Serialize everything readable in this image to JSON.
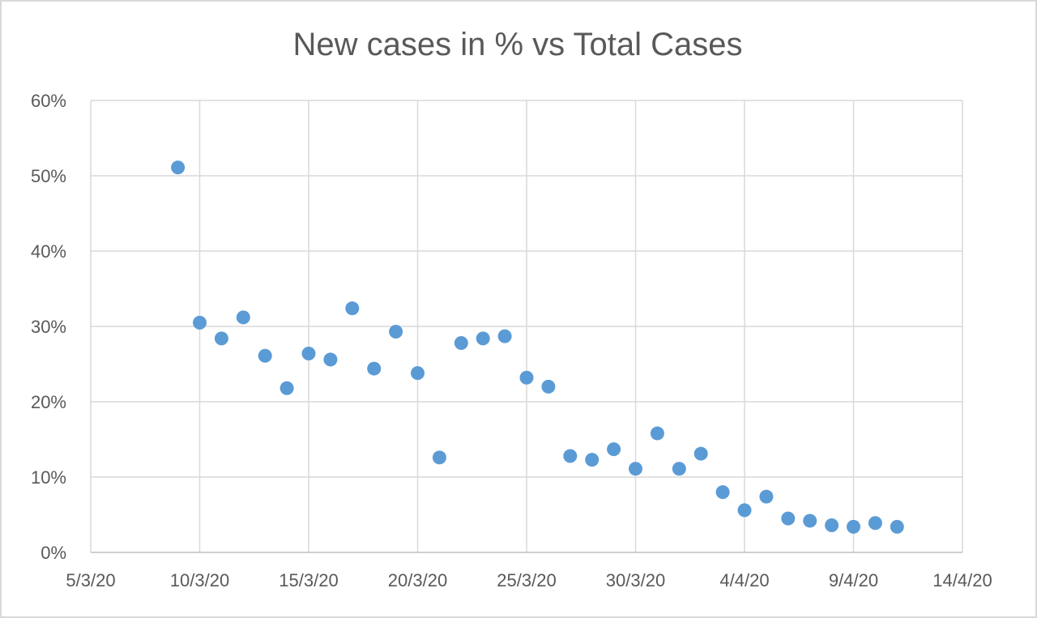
{
  "chart_data": {
    "type": "scatter",
    "title": "New cases in % vs Total Cases",
    "xlabel": "",
    "ylabel": "",
    "x_tick_labels": [
      "5/3/20",
      "10/3/20",
      "15/3/20",
      "20/3/20",
      "25/3/20",
      "30/3/20",
      "4/4/20",
      "9/4/20",
      "14/4/20"
    ],
    "y_tick_labels": [
      "0%",
      "10%",
      "20%",
      "30%",
      "40%",
      "50%",
      "60%"
    ],
    "xlim": [
      "5/3/20",
      "14/4/20"
    ],
    "ylim": [
      0,
      60
    ],
    "grid": true,
    "legend": "none",
    "marker_color": "#5b9bd5",
    "points": [
      {
        "x": "9/3/20",
        "y": 51.1
      },
      {
        "x": "10/3/20",
        "y": 30.5
      },
      {
        "x": "11/3/20",
        "y": 28.4
      },
      {
        "x": "12/3/20",
        "y": 31.2
      },
      {
        "x": "13/3/20",
        "y": 26.1
      },
      {
        "x": "14/3/20",
        "y": 21.8
      },
      {
        "x": "15/3/20",
        "y": 26.4
      },
      {
        "x": "16/3/20",
        "y": 25.6
      },
      {
        "x": "17/3/20",
        "y": 32.4
      },
      {
        "x": "18/3/20",
        "y": 24.4
      },
      {
        "x": "19/3/20",
        "y": 29.3
      },
      {
        "x": "20/3/20",
        "y": 23.8
      },
      {
        "x": "21/3/20",
        "y": 12.6
      },
      {
        "x": "22/3/20",
        "y": 27.8
      },
      {
        "x": "23/3/20",
        "y": 28.4
      },
      {
        "x": "24/3/20",
        "y": 28.7
      },
      {
        "x": "25/3/20",
        "y": 23.2
      },
      {
        "x": "26/3/20",
        "y": 22.0
      },
      {
        "x": "27/3/20",
        "y": 12.8
      },
      {
        "x": "28/3/20",
        "y": 12.3
      },
      {
        "x": "29/3/20",
        "y": 13.7
      },
      {
        "x": "30/3/20",
        "y": 11.1
      },
      {
        "x": "31/3/20",
        "y": 15.8
      },
      {
        "x": "1/4/20",
        "y": 11.1
      },
      {
        "x": "2/4/20",
        "y": 13.1
      },
      {
        "x": "3/4/20",
        "y": 8.0
      },
      {
        "x": "4/4/20",
        "y": 5.6
      },
      {
        "x": "5/4/20",
        "y": 7.4
      },
      {
        "x": "6/4/20",
        "y": 4.5
      },
      {
        "x": "7/4/20",
        "y": 4.2
      },
      {
        "x": "8/4/20",
        "y": 3.6
      },
      {
        "x": "9/4/20",
        "y": 3.4
      },
      {
        "x": "10/4/20",
        "y": 3.9
      },
      {
        "x": "11/4/20",
        "y": 3.4
      }
    ]
  }
}
